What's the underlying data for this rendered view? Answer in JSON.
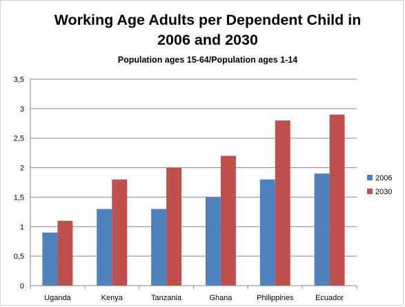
{
  "chart_data": {
    "type": "bar",
    "title_line1": "Working Age Adults per Dependent Child in",
    "title_line2": "2006 and 2030",
    "subtitle": "Population ages 15-64/Population ages 1-14",
    "xlabel": "",
    "ylabel": "",
    "categories": [
      "Uganda",
      "Kenya",
      "Tanzania",
      "Ghana",
      "Philippines",
      "Ecuador"
    ],
    "series": [
      {
        "name": "2006",
        "color": "#4f81bd",
        "values": [
          0.9,
          1.3,
          1.3,
          1.5,
          1.8,
          1.9
        ]
      },
      {
        "name": "2030",
        "color": "#c0504d",
        "values": [
          1.1,
          1.8,
          2.0,
          2.2,
          2.8,
          2.9
        ]
      }
    ],
    "ylim": [
      0,
      3.5
    ],
    "yticks": [
      "0",
      "0,5",
      "1",
      "1,5",
      "2",
      "2,5",
      "3",
      "3,5"
    ],
    "grid": true,
    "legend_position": "right"
  }
}
